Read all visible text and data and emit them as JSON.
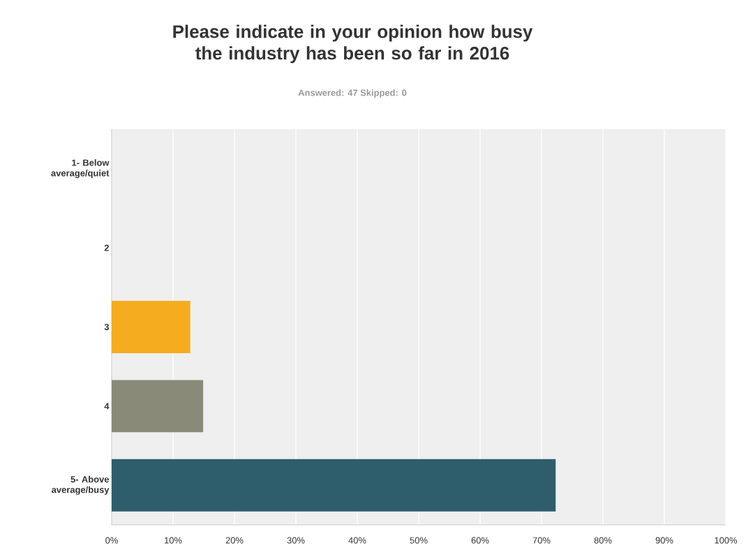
{
  "chart_data": {
    "type": "bar",
    "orientation": "horizontal",
    "title": "Please indicate in your opinion how busy the industry has been so far in 2016",
    "subtitle": "Answered: 47    Skipped: 0",
    "categories": [
      "1- Below average/quiet",
      "2",
      "3",
      "4",
      "5- Above average/busy"
    ],
    "values": [
      0,
      0,
      12.8,
      14.9,
      72.3
    ],
    "colors": [
      null,
      null,
      "#f5ad1f",
      "#898a77",
      "#2e5e6b"
    ],
    "xlim": [
      0,
      100
    ],
    "xticks": [
      {
        "value": 0,
        "label": "0%"
      },
      {
        "value": 10,
        "label": "10%"
      },
      {
        "value": 20,
        "label": "20%"
      },
      {
        "value": 30,
        "label": "30%"
      },
      {
        "value": 40,
        "label": "40%"
      },
      {
        "value": 50,
        "label": "50%"
      },
      {
        "value": 60,
        "label": "60%"
      },
      {
        "value": 70,
        "label": "70%"
      },
      {
        "value": 80,
        "label": "80%"
      },
      {
        "value": 90,
        "label": "90%"
      },
      {
        "value": 100,
        "label": "100%"
      }
    ],
    "grid": "x"
  }
}
